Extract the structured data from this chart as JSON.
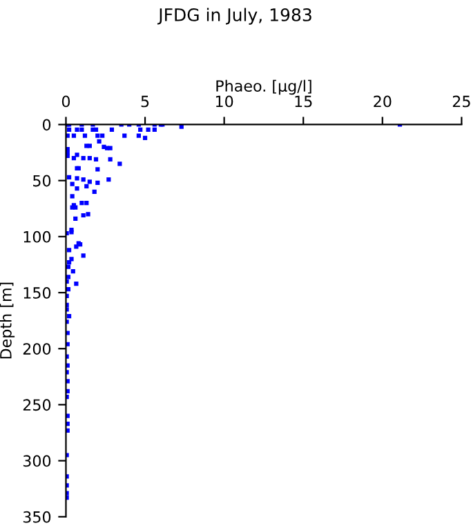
{
  "chart_data": {
    "type": "scatter",
    "title": "JFDG in July, 1983",
    "xlabel": "Phaeo. [µg/l]",
    "ylabel": "Depth [m]",
    "xlim": [
      0,
      25
    ],
    "xticks": [
      0,
      5,
      10,
      15,
      20,
      25
    ],
    "ylim": [
      350,
      0
    ],
    "yticks": [
      0,
      50,
      100,
      150,
      200,
      250,
      300,
      350
    ],
    "grid": false,
    "marker": "square",
    "series": [
      {
        "color": "#0000ff",
        "x": [
          0.1,
          0.2,
          1.0,
          1.7,
          3.5,
          4.0,
          4.6,
          5.6,
          6.0,
          6.1,
          7.3,
          21.1,
          0.2,
          0.7,
          1.0,
          1.7,
          1.9,
          2.9,
          4.7,
          5.2,
          5.6,
          0.1,
          0.5,
          1.2,
          2.0,
          2.3,
          3.7,
          4.6,
          5.0,
          2.1,
          1.3,
          1.5,
          2.4,
          2.6,
          2.8,
          0.1,
          0.1,
          0.1,
          0.7,
          1.1,
          1.5,
          1.9,
          2.8,
          3.4,
          0.5,
          0.7,
          0.8,
          2.0,
          0.2,
          0.7,
          1.1,
          2.7,
          1.5,
          2.0,
          0.4,
          1.3,
          0.7,
          1.8,
          0.4,
          1.0,
          1.3,
          0.5,
          0.4,
          0.6,
          1.4,
          1.1,
          0.6,
          0.35,
          0.05,
          0.35,
          0.2,
          0.65,
          0.8,
          0.9,
          1.1,
          0.35,
          0.2,
          0.15,
          0.45,
          0.15,
          0.05,
          0.65,
          0.15,
          0.05,
          0.05,
          0.05,
          0.2,
          0.05,
          0.1,
          0.1,
          0.05,
          0.1,
          0.05,
          0.1,
          0.1,
          0.05,
          0.1,
          0.1,
          0.1,
          0.05,
          0.05,
          0.05,
          0.05,
          0.05
        ],
        "values": [
          0,
          0,
          0,
          0,
          0,
          0,
          0,
          0,
          0,
          0,
          2,
          0,
          4.5,
          4.5,
          4.5,
          4.5,
          4.5,
          4.5,
          4.5,
          4.5,
          4.5,
          10,
          10,
          10,
          10,
          10,
          10,
          10,
          12,
          15,
          19,
          19,
          20,
          21,
          21,
          22,
          25,
          28,
          27,
          30,
          30,
          31,
          31,
          35,
          30,
          39,
          39,
          40,
          47,
          48,
          49,
          49,
          51,
          52,
          53,
          55,
          57,
          60,
          64,
          70,
          70,
          72,
          74,
          74,
          80,
          81,
          84,
          94,
          97,
          96,
          112,
          109,
          106,
          107,
          117,
          120,
          123,
          127,
          131,
          136,
          140,
          142,
          147,
          153,
          161,
          165,
          171,
          176,
          186,
          196,
          207,
          215,
          221,
          229,
          238,
          243,
          260,
          267,
          273,
          295,
          314,
          322,
          329,
          333
        ]
      }
    ]
  }
}
